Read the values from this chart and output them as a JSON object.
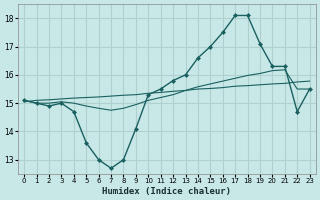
{
  "xlabel": "Humidex (Indice chaleur)",
  "bg_color": "#c8e8e8",
  "grid_color": "#b0d0d0",
  "line_color": "#1a6060",
  "xlim": [
    -0.5,
    23.5
  ],
  "ylim": [
    12.5,
    18.5
  ],
  "yticks": [
    13,
    14,
    15,
    16,
    17,
    18
  ],
  "xticks": [
    0,
    1,
    2,
    3,
    4,
    5,
    6,
    7,
    8,
    9,
    10,
    11,
    12,
    13,
    14,
    15,
    16,
    17,
    18,
    19,
    20,
    21,
    22,
    23
  ],
  "series1_x": [
    0,
    1,
    2,
    3,
    4,
    5,
    6,
    7,
    8,
    9,
    10,
    11,
    12,
    13,
    14,
    15,
    16,
    17,
    18,
    19,
    20,
    21,
    22,
    23
  ],
  "series1_y": [
    15.1,
    15.0,
    14.9,
    15.0,
    14.7,
    13.6,
    13.0,
    12.7,
    13.0,
    14.1,
    15.3,
    15.5,
    15.8,
    16.0,
    16.6,
    17.0,
    17.5,
    18.1,
    18.1,
    17.1,
    16.3,
    16.3,
    14.7,
    15.5
  ],
  "series2_x": [
    0,
    1,
    2,
    3,
    4,
    5,
    6,
    7,
    8,
    9,
    10,
    11,
    12,
    13,
    14,
    15,
    16,
    17,
    18,
    19,
    20,
    21,
    22,
    23
  ],
  "series2_y": [
    15.05,
    15.1,
    15.12,
    15.15,
    15.18,
    15.2,
    15.22,
    15.25,
    15.28,
    15.3,
    15.35,
    15.38,
    15.42,
    15.45,
    15.5,
    15.52,
    15.55,
    15.6,
    15.62,
    15.65,
    15.68,
    15.7,
    15.75,
    15.78
  ],
  "series3_x": [
    0,
    1,
    2,
    3,
    4,
    5,
    6,
    7,
    8,
    9,
    10,
    11,
    12,
    13,
    14,
    15,
    16,
    17,
    18,
    19,
    20,
    21,
    22,
    23
  ],
  "series3_y": [
    15.1,
    15.0,
    15.0,
    15.05,
    15.0,
    14.9,
    14.82,
    14.75,
    14.82,
    14.95,
    15.1,
    15.2,
    15.3,
    15.45,
    15.58,
    15.68,
    15.78,
    15.88,
    15.98,
    16.05,
    16.15,
    16.18,
    15.5,
    15.5
  ]
}
